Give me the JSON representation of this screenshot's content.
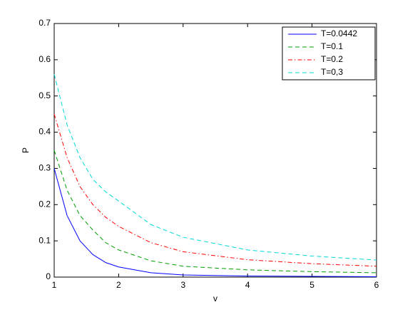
{
  "chart_data": {
    "type": "line",
    "x_label": "v",
    "y_label": "P",
    "x": [
      1,
      1.2,
      1.4,
      1.6,
      1.8,
      2,
      2.5,
      3,
      4,
      5,
      6
    ],
    "series": [
      {
        "name": "T=0.0442",
        "color": "#0000ff",
        "line_style": "solid",
        "values": [
          0.3,
          0.17,
          0.1,
          0.062,
          0.04,
          0.028,
          0.012,
          0.006,
          0.003,
          0.002,
          0.001
        ]
      },
      {
        "name": "T=0.1",
        "color": "#00a000",
        "line_style": "dashed",
        "values": [
          0.35,
          0.24,
          0.17,
          0.13,
          0.095,
          0.075,
          0.045,
          0.03,
          0.02,
          0.015,
          0.012
        ]
      },
      {
        "name": "T=0.2",
        "color": "#ff0000",
        "line_style": "dashdot",
        "values": [
          0.45,
          0.33,
          0.25,
          0.2,
          0.165,
          0.14,
          0.095,
          0.07,
          0.048,
          0.037,
          0.03
        ]
      },
      {
        "name": "T=0,3",
        "color": "#00d8d8",
        "line_style": "dashed",
        "values": [
          0.56,
          0.42,
          0.33,
          0.27,
          0.235,
          0.21,
          0.145,
          0.11,
          0.075,
          0.058,
          0.047
        ]
      }
    ],
    "xlim": [
      1,
      6
    ],
    "xticks": [
      1,
      2,
      3,
      4,
      5,
      6
    ],
    "ylim": [
      0,
      0.7
    ],
    "yticks": [
      0,
      0.1,
      0.2,
      0.3,
      0.4,
      0.5,
      0.6,
      0.7
    ],
    "grid": false,
    "legend": "top-right"
  }
}
